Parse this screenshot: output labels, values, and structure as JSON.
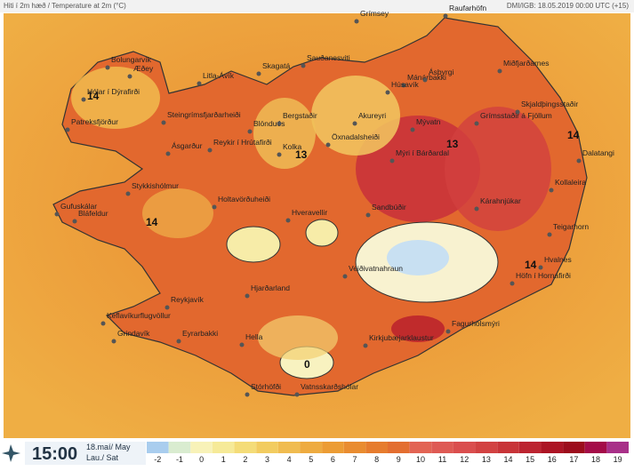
{
  "header": {
    "title": "Hiti í 2m hæð / Temperature at 2m (°C)",
    "source": "DMI/IGB: 18.05.2019 00:00 UTC (+15)"
  },
  "places": [
    "Grímsey",
    "Raufarhöfn",
    "Sauðanesviti",
    "Mánárbakki",
    "Bolungarvík",
    "Æðey",
    "Skagatá",
    "Litla-Ávík",
    "Ásbyrgi",
    "Miðfjarðarnes",
    "Hólar í Dýrafirði",
    "Húsavík",
    "Skjaldþingsstaðir",
    "Patreksfjörður",
    "Steingrímsfjarðarheiði",
    "Blönduós",
    "Bergstaðir",
    "Akureyri",
    "Mývatn",
    "Grímsstaðir á Fjöllum",
    "Dalatangi",
    "Öxnadalsheiði",
    "Mýri í Bárðardal",
    "Reykir í Hrútafirði",
    "Kolka",
    "Ásgarður",
    "Kollaleira",
    "Stykkishólmur",
    "Holtavörðuheiði",
    "Gufuskálar",
    "Bláfeldur",
    "Hveravellir",
    "Sandbúðir",
    "Kárahnjúkar",
    "Teigarhorn",
    "Veiðivatnahraun",
    "Hvalnes",
    "Höfn í Hornafirði",
    "Hjarðarland",
    "Reykjavík",
    "Keflavíkurflugvöllur",
    "Fagurhólsmýri",
    "Grindavík",
    "Eyrarbakki",
    "Hella",
    "Kirkjubæjarklaustur",
    "Stórhöfði",
    "Vatnsskarðshólar"
  ],
  "contours": [
    "14",
    "13",
    "13",
    "14",
    "14",
    "14",
    "0"
  ],
  "footer": {
    "time": "15:00",
    "date": "18.maí/ May",
    "day": "Lau./ Sat"
  },
  "legend": {
    "values": [
      -2,
      -1,
      0,
      1,
      2,
      3,
      4,
      5,
      6,
      7,
      8,
      9,
      10,
      11,
      12,
      13,
      14,
      15,
      16,
      17,
      18,
      19
    ],
    "colors": [
      "#a9cdee",
      "#d9ecd0",
      "#f8f2b8",
      "#f6ea98",
      "#f4dc78",
      "#f2cc60",
      "#f0bc50",
      "#eeab40",
      "#ec9c34",
      "#e98c30",
      "#e67c2e",
      "#e36e30",
      "#e26454",
      "#de5a54",
      "#da4e4e",
      "#d24242",
      "#c83438",
      "#bc2430",
      "#ac1424",
      "#9c0c1c",
      "#a40c48",
      "#a83088"
    ]
  }
}
